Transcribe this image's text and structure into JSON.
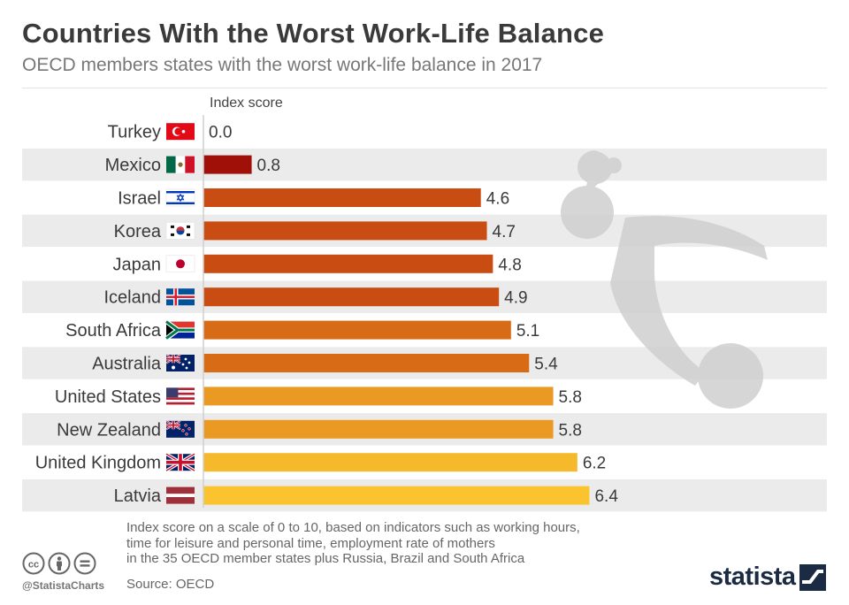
{
  "header": {
    "title": "Countries With the Worst Work-Life Balance",
    "subtitle": "OECD members states with the worst work-life balance in 2017"
  },
  "chart_data": {
    "type": "bar",
    "orientation": "horizontal",
    "value_axis_label": "Index score",
    "categories": [
      "Turkey",
      "Mexico",
      "Israel",
      "Korea",
      "Japan",
      "Iceland",
      "South Africa",
      "Australia",
      "United States",
      "New Zealand",
      "United Kingdom",
      "Latvia"
    ],
    "values": [
      0.0,
      0.8,
      4.6,
      4.7,
      4.8,
      4.9,
      5.1,
      5.4,
      5.8,
      5.8,
      6.2,
      6.4
    ],
    "value_labels": [
      "0.0",
      "0.8",
      "4.6",
      "4.7",
      "4.8",
      "4.9",
      "5.1",
      "5.4",
      "5.8",
      "5.8",
      "6.2",
      "6.4"
    ],
    "xlim": [
      0,
      10
    ],
    "bar_colors": [
      "#a01008",
      "#a01008",
      "#c94c12",
      "#c94c12",
      "#c94c12",
      "#c94c12",
      "#d86c16",
      "#d86c16",
      "#ea9a22",
      "#ea9a22",
      "#f7b92c",
      "#fbc42f"
    ],
    "flag_icons": [
      "flag-turkey",
      "flag-mexico",
      "flag-israel",
      "flag-korea",
      "flag-japan",
      "flag-iceland",
      "flag-south-africa",
      "flag-australia",
      "flag-usa",
      "flag-new-zealand",
      "flag-uk",
      "flag-latvia"
    ],
    "grid": false,
    "legend": "none"
  },
  "footer": {
    "note_lines": [
      "Index score on a scale of 0 to 10, based on indicators such as working hours,",
      "time for leisure and personal time, employment rate of mothers",
      "in the 35 OECD member states plus Russia, Brazil and South Africa"
    ],
    "source": "Source: OECD",
    "handle": "@StatistaCharts",
    "logo_text": "statista",
    "icons": [
      "cc-icon",
      "by-icon",
      "nd-icon"
    ]
  },
  "colors": {
    "title": "#3a3a3a",
    "subtitle": "#777777",
    "row_shade": "#ebebeb",
    "brand": "#1c2b44"
  }
}
